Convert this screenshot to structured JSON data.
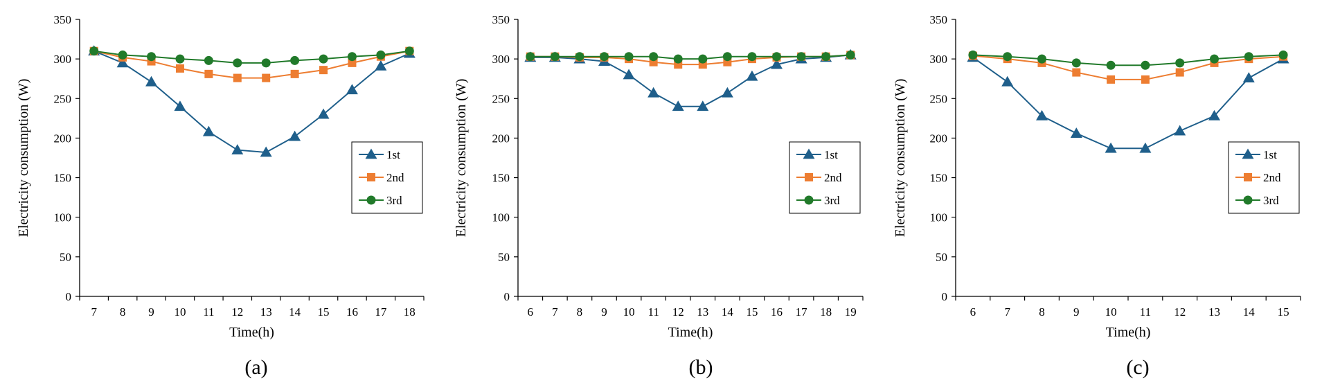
{
  "colors": {
    "series_1st": "#1f5f8b",
    "series_2nd": "#ed7d31",
    "series_3rd": "#217a2a",
    "axis": "#000000"
  },
  "chart_data": [
    {
      "type": "line",
      "panel_label": "(a)",
      "xlabel": "Time(h)",
      "ylabel": "Electricity consumption (W)",
      "ylim": [
        0,
        350
      ],
      "yticks": [
        0,
        50,
        100,
        150,
        200,
        250,
        300,
        350
      ],
      "x": [
        7,
        8,
        9,
        10,
        11,
        12,
        13,
        14,
        15,
        16,
        17,
        18
      ],
      "grid": false,
      "legend_position": "center-right",
      "series": [
        {
          "name": "1st",
          "marker": "triangle",
          "values": [
            310,
            295,
            271,
            240,
            208,
            185,
            182,
            202,
            230,
            261,
            291,
            307
          ]
        },
        {
          "name": "2nd",
          "marker": "square",
          "values": [
            310,
            302,
            297,
            288,
            281,
            276,
            276,
            281,
            286,
            295,
            303,
            310
          ]
        },
        {
          "name": "3rd",
          "marker": "circle",
          "values": [
            310,
            305,
            303,
            300,
            298,
            295,
            295,
            298,
            300,
            303,
            305,
            310
          ]
        }
      ]
    },
    {
      "type": "line",
      "panel_label": "(b)",
      "xlabel": "Time(h)",
      "ylabel": "Electricity consumption (W)",
      "ylim": [
        0,
        350
      ],
      "yticks": [
        0,
        50,
        100,
        150,
        200,
        250,
        300,
        350
      ],
      "x": [
        6,
        7,
        8,
        9,
        10,
        11,
        12,
        13,
        14,
        15,
        16,
        17,
        18,
        19
      ],
      "grid": false,
      "legend_position": "center-right",
      "series": [
        {
          "name": "1st",
          "marker": "triangle",
          "values": [
            302,
            302,
            300,
            297,
            280,
            257,
            240,
            240,
            257,
            278,
            293,
            300,
            302,
            305
          ]
        },
        {
          "name": "2nd",
          "marker": "square",
          "values": [
            303,
            303,
            302,
            302,
            300,
            296,
            293,
            293,
            296,
            300,
            302,
            303,
            303,
            305
          ]
        },
        {
          "name": "3rd",
          "marker": "circle",
          "values": [
            303,
            303,
            303,
            303,
            303,
            303,
            300,
            300,
            303,
            303,
            303,
            303,
            303,
            305
          ]
        }
      ]
    },
    {
      "type": "line",
      "panel_label": "(c)",
      "xlabel": "Time(h)",
      "ylabel": "Electricity consumption (W)",
      "ylim": [
        0,
        350
      ],
      "yticks": [
        0,
        50,
        100,
        150,
        200,
        250,
        300,
        350
      ],
      "x": [
        6,
        7,
        8,
        9,
        10,
        11,
        12,
        13,
        14,
        15
      ],
      "grid": false,
      "legend_position": "center-right",
      "series": [
        {
          "name": "1st",
          "marker": "triangle",
          "values": [
            302,
            271,
            228,
            206,
            187,
            187,
            209,
            228,
            276,
            300
          ]
        },
        {
          "name": "2nd",
          "marker": "square",
          "values": [
            304,
            300,
            295,
            283,
            274,
            274,
            283,
            295,
            300,
            303
          ]
        },
        {
          "name": "3rd",
          "marker": "circle",
          "values": [
            305,
            303,
            300,
            295,
            292,
            292,
            295,
            300,
            303,
            305
          ]
        }
      ]
    }
  ]
}
